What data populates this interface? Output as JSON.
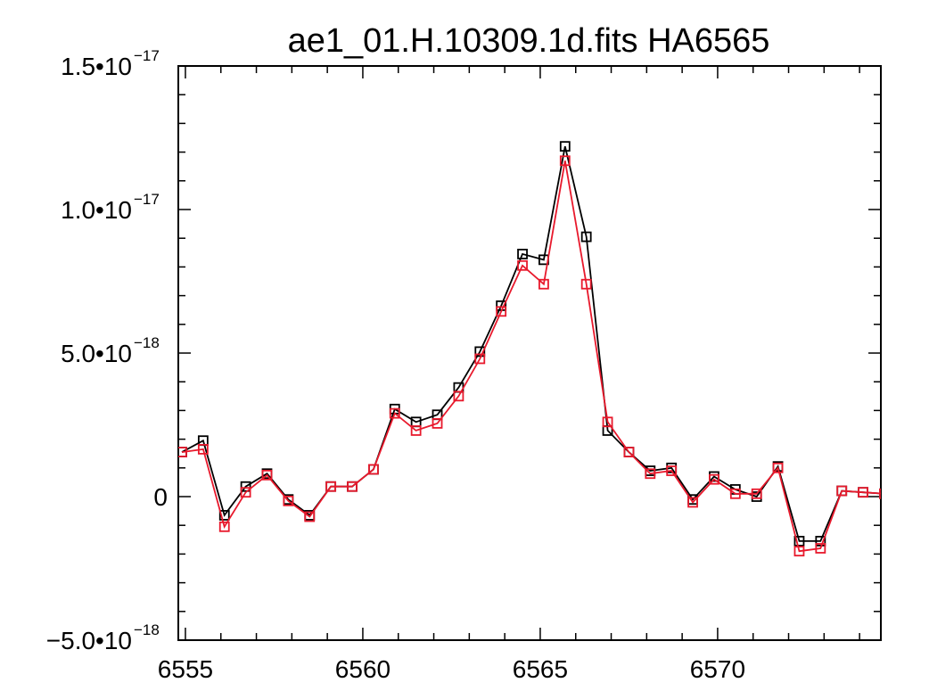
{
  "chart_data": {
    "type": "line",
    "title": "ae1_01.H.10309.1d.fits HA6565",
    "xlabel": "",
    "ylabel": "",
    "xlim": [
      6554.8,
      6574.6
    ],
    "ylim": [
      -5e-18,
      1.5e-17
    ],
    "x_ticks": [
      {
        "value": 6555,
        "label": "6555"
      },
      {
        "value": 6560,
        "label": "6560"
      },
      {
        "value": 6565,
        "label": "6565"
      },
      {
        "value": 6570,
        "label": "6570"
      }
    ],
    "y_ticks": [
      {
        "value": 1.5e-17,
        "mantissa": "1.5•10",
        "exponent": "−17"
      },
      {
        "value": 1e-17,
        "mantissa": "1.0•10",
        "exponent": "−17"
      },
      {
        "value": 5e-18,
        "mantissa": "5.0•10",
        "exponent": "−18"
      },
      {
        "value": 0,
        "mantissa": "0",
        "exponent": ""
      },
      {
        "value": -5e-18,
        "mantissa": "−5.0•10",
        "exponent": "−18"
      }
    ],
    "grid": false,
    "x": [
      6554.9,
      6555.5,
      6556.1,
      6556.7,
      6557.3,
      6557.9,
      6558.5,
      6559.1,
      6559.7,
      6560.3,
      6560.9,
      6561.5,
      6562.1,
      6562.7,
      6563.3,
      6563.9,
      6564.5,
      6565.1,
      6565.7,
      6566.3,
      6566.9,
      6567.5,
      6568.1,
      6568.7,
      6569.3,
      6569.9,
      6570.5,
      6571.1,
      6571.7,
      6572.3,
      6572.9,
      6573.5,
      6574.1,
      6574.7
    ],
    "series": [
      {
        "color": "#000000",
        "values": [
          1.55e-18,
          1.95e-18,
          -6.5e-19,
          3.5e-19,
          8e-19,
          -1e-19,
          -6.5e-19,
          3.5e-19,
          3.5e-19,
          9.5e-19,
          3.05e-18,
          2.6e-18,
          2.85e-18,
          3.8e-18,
          5.05e-18,
          6.65e-18,
          8.45e-18,
          8.25e-18,
          1.22e-17,
          9.05e-18,
          2.3e-18,
          1.55e-18,
          9e-19,
          1e-18,
          -1e-19,
          7e-19,
          2.5e-19,
          0.0,
          1.05e-18,
          -1.55e-18,
          -1.55e-18,
          2e-19,
          1.5e-19,
          1e-19
        ]
      },
      {
        "color": "#e8192c",
        "values": [
          1.55e-18,
          1.65e-18,
          -1.05e-18,
          1.5e-19,
          7.5e-19,
          -1.5e-19,
          -7e-19,
          3.5e-19,
          3.5e-19,
          9.5e-19,
          2.9e-18,
          2.3e-18,
          2.55e-18,
          3.5e-18,
          4.8e-18,
          6.45e-18,
          8.05e-18,
          7.4e-18,
          1.17e-17,
          7.4e-18,
          2.6e-18,
          1.55e-18,
          8e-19,
          9e-19,
          -2e-19,
          6e-19,
          1e-19,
          1e-19,
          1e-18,
          -1.9e-18,
          -1.8e-18,
          2e-19,
          1.5e-19,
          1e-19
        ]
      }
    ]
  }
}
